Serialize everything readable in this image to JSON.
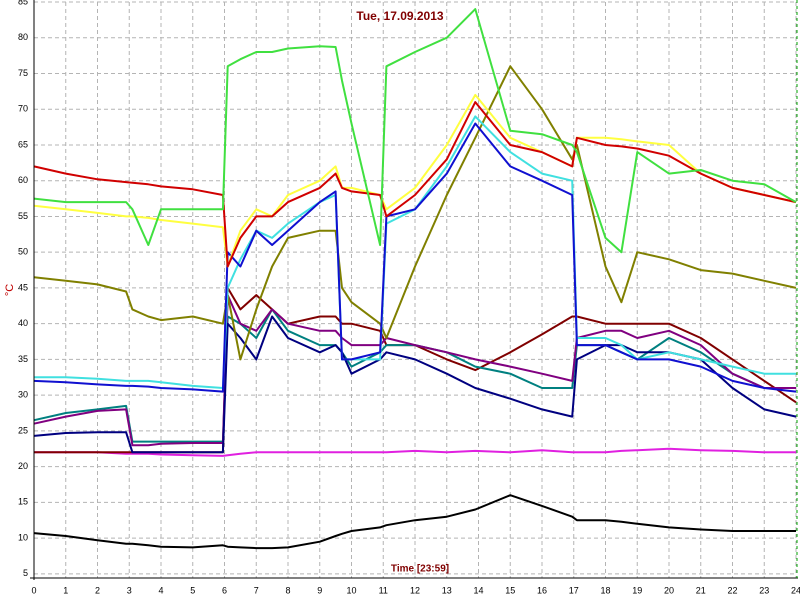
{
  "chart_data": {
    "type": "line",
    "title": "Tue, 17.09.2013",
    "xlabel": "Time [23:59]",
    "ylabel": "°C",
    "x": [
      0,
      1,
      2,
      2.9,
      3.1,
      3.6,
      4,
      5,
      5.95,
      6.1,
      6.5,
      7,
      7.5,
      8,
      9,
      9.5,
      9.7,
      10,
      10.9,
      11.1,
      12,
      13,
      13.9,
      15,
      16,
      16.95,
      17.1,
      18,
      18.5,
      19,
      20,
      21,
      22,
      23,
      24
    ],
    "xlim": [
      0,
      24
    ],
    "xticks": [
      0,
      1,
      2,
      3,
      4,
      5,
      6,
      7,
      8,
      9,
      10,
      11,
      12,
      13,
      14,
      15,
      16,
      17,
      18,
      19,
      20,
      21,
      22,
      23,
      24
    ],
    "ylim": [
      4.7,
      85
    ],
    "yticks": [
      5,
      10,
      15,
      20,
      25,
      30,
      35,
      40,
      45,
      50,
      55,
      60,
      65,
      70,
      75,
      80,
      85
    ],
    "grid": true,
    "series": [
      {
        "color": "#000000",
        "values": [
          10.7,
          10.3,
          9.7,
          9.2,
          9.2,
          9,
          8.8,
          8.7,
          9,
          8.8,
          8.7,
          8.6,
          8.6,
          8.7,
          9.5,
          10.3,
          10.6,
          11,
          11.5,
          11.8,
          12.5,
          13,
          14,
          16,
          14.5,
          13,
          12.5,
          12.5,
          12.3,
          12,
          11.5,
          11.2,
          11,
          11,
          11
        ]
      },
      {
        "color": "#e020e0",
        "values": [
          22,
          22,
          22,
          21.8,
          21.8,
          21.8,
          21.7,
          21.6,
          21.5,
          21.6,
          21.8,
          22,
          22,
          22,
          22,
          22,
          22,
          22,
          22,
          22,
          22.2,
          22,
          22.2,
          22,
          22.3,
          22,
          22,
          22,
          22.2,
          22.3,
          22.5,
          22.3,
          22.2,
          22,
          22
        ]
      },
      {
        "color": "#800000",
        "values": [
          22,
          22,
          22,
          22,
          22,
          22,
          22,
          22,
          22,
          45,
          42,
          44,
          42,
          40,
          41,
          41,
          40,
          40,
          39,
          37,
          37,
          35,
          33.5,
          36,
          38.5,
          41,
          41,
          40,
          40,
          40,
          40,
          38,
          35,
          32,
          29
        ]
      },
      {
        "color": "#008080",
        "values": [
          26.5,
          27.5,
          28,
          28.5,
          23.5,
          23.5,
          23.5,
          23.5,
          23.5,
          41,
          40,
          38,
          42,
          39,
          37,
          37,
          36,
          34,
          36,
          37,
          37,
          36,
          34,
          33,
          31,
          31,
          37,
          37,
          36,
          35,
          38,
          36,
          33,
          31,
          31
        ]
      },
      {
        "color": "#800080",
        "values": [
          26,
          27,
          27.8,
          28,
          23,
          23,
          23.2,
          23.3,
          23.3,
          44,
          40,
          39,
          42,
          40,
          39,
          39,
          38,
          37,
          37,
          38,
          37,
          36,
          35,
          34,
          33,
          32,
          38,
          39,
          39,
          38,
          39,
          37,
          33,
          31,
          31
        ]
      },
      {
        "color": "#000080",
        "values": [
          24.3,
          24.7,
          24.8,
          24.8,
          22,
          22,
          22,
          22,
          22,
          40,
          38,
          35,
          41,
          38,
          36,
          37,
          36,
          33,
          35,
          36,
          35,
          33,
          31,
          29.5,
          28,
          27,
          35,
          37,
          37,
          36,
          36,
          35,
          31,
          28,
          27
        ]
      },
      {
        "color": "#808000",
        "values": [
          46.5,
          46,
          45.5,
          44.5,
          42,
          41,
          40.5,
          41,
          40,
          44,
          35,
          42,
          48,
          52,
          53,
          53,
          45,
          43,
          40,
          38,
          48,
          58,
          66,
          76,
          70,
          63,
          65,
          48,
          43,
          50,
          49,
          47.5,
          47,
          46,
          45
        ]
      },
      {
        "color": "#40e0e0",
        "values": [
          32.5,
          32.5,
          32.3,
          32,
          32,
          32,
          31.8,
          31.3,
          31,
          45,
          49,
          53,
          52,
          54,
          57,
          58,
          35,
          35,
          35,
          54,
          56,
          62,
          69,
          64,
          61,
          60,
          38,
          38,
          37,
          35,
          36,
          35,
          34,
          33,
          33
        ]
      },
      {
        "color": "#1010d0",
        "values": [
          32,
          31.8,
          31.5,
          31.3,
          31.3,
          31.2,
          31,
          30.8,
          30.5,
          50,
          48,
          53,
          51,
          53,
          57,
          58.5,
          35,
          35,
          36,
          55,
          56,
          61,
          68,
          62,
          60,
          58,
          37,
          37,
          36,
          35,
          35,
          34,
          32,
          31,
          30.5
        ]
      },
      {
        "color": "#ffff40",
        "values": [
          56.5,
          56,
          55.5,
          55,
          55,
          54.8,
          54.5,
          54,
          53.5,
          48,
          53,
          56,
          55,
          58,
          60,
          62,
          59,
          59,
          58,
          56,
          59,
          65,
          72,
          66,
          64,
          62,
          66,
          66,
          65.8,
          65.5,
          65,
          61,
          59,
          58,
          57
        ]
      },
      {
        "color": "#d00000",
        "values": [
          62,
          61,
          60.2,
          59.8,
          59.7,
          59.5,
          59.2,
          58.8,
          58,
          48,
          52,
          55,
          55,
          57,
          59,
          61,
          59,
          58.5,
          58,
          55,
          58,
          63,
          71,
          65,
          64,
          62,
          66,
          65,
          64.8,
          64.5,
          63.5,
          61,
          59,
          58,
          57
        ]
      },
      {
        "color": "#40e040",
        "values": [
          57.5,
          57,
          57,
          57,
          56,
          51,
          56,
          56,
          56,
          76,
          77,
          78,
          78,
          78.5,
          78.8,
          78.7,
          74,
          68,
          51,
          76,
          78,
          80,
          84,
          67,
          66.5,
          65,
          64,
          52,
          50,
          64,
          61,
          61.5,
          60,
          59.5,
          57
        ]
      }
    ]
  }
}
